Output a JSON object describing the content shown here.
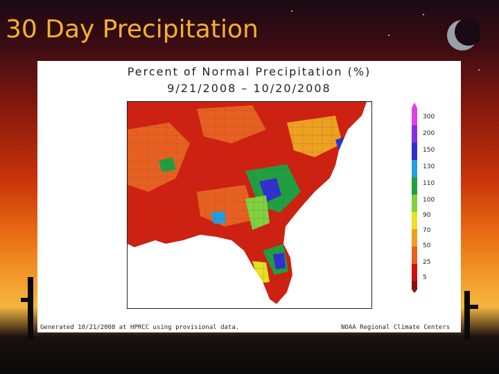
{
  "slide": {
    "title": "30 Day Precipitation"
  },
  "map": {
    "title_line1": "Percent of Normal Precipitation (%)",
    "title_line2": "9/21/2008 – 10/20/2008",
    "footer_left": "Generated 10/21/2008 at HPRCC using provisional data.",
    "footer_right": "NOAA Regional Climate Centers",
    "legend": [
      {
        "label": "300",
        "color": "#e040e0"
      },
      {
        "label": "200",
        "color": "#8a2be2"
      },
      {
        "label": "150",
        "color": "#3030d0"
      },
      {
        "label": "130",
        "color": "#20a0e0"
      },
      {
        "label": "110",
        "color": "#20a040"
      },
      {
        "label": "100",
        "color": "#80d040"
      },
      {
        "label": "90",
        "color": "#e8e020"
      },
      {
        "label": "70",
        "color": "#f0a020"
      },
      {
        "label": "50",
        "color": "#e86020"
      },
      {
        "label": "25",
        "color": "#d01010"
      },
      {
        "label": "5",
        "color": "#901010"
      }
    ]
  }
}
